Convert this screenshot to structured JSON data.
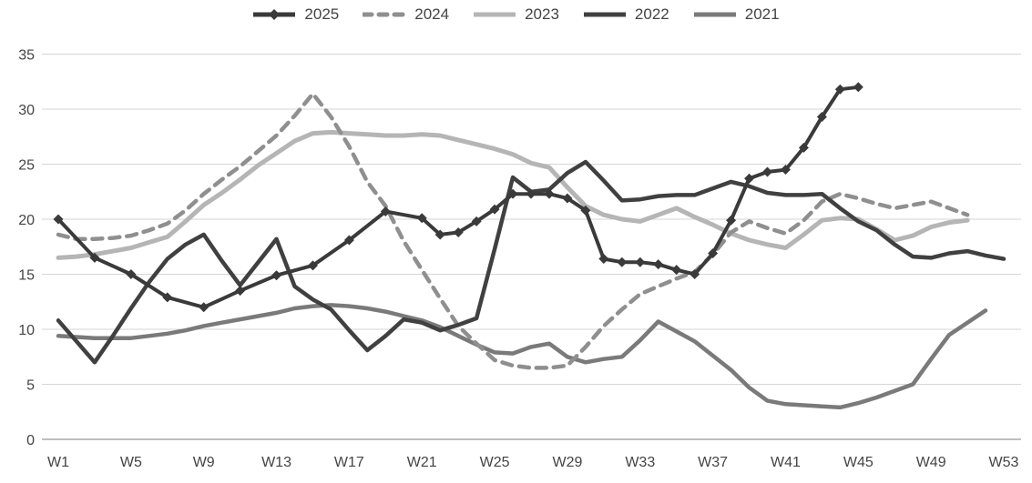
{
  "chart_data": {
    "type": "line",
    "title": "",
    "grid": true,
    "legend_position": "top",
    "x_axis": {
      "unit": "week",
      "min_week": 1,
      "max_week": 53,
      "tick_weeks": [
        1,
        5,
        9,
        13,
        17,
        21,
        25,
        29,
        33,
        37,
        41,
        45,
        49,
        53
      ],
      "tick_labels": [
        "W1",
        "W5",
        "W9",
        "W13",
        "W17",
        "W21",
        "W25",
        "W29",
        "W33",
        "W37",
        "W41",
        "W45",
        "W49",
        "W53"
      ]
    },
    "y_axis": {
      "min": 0,
      "max": 35,
      "ticks": [
        0,
        5,
        10,
        15,
        20,
        25,
        30,
        35
      ]
    },
    "colors": {
      "grid": "#d6d6d6",
      "baseline": "#a9a9a9",
      "tick_text": "#444444"
    },
    "series": [
      {
        "name": "2025",
        "color": "#3a3a3a",
        "width": 4,
        "dash": null,
        "marker": "diamond",
        "points": [
          [
            1,
            20
          ],
          [
            3,
            16.5
          ],
          [
            5,
            15
          ],
          [
            7,
            12.9
          ],
          [
            9,
            12
          ],
          [
            11,
            13.5
          ],
          [
            13,
            14.9
          ],
          [
            15,
            15.8
          ],
          [
            17,
            18.1
          ],
          [
            19,
            20.7
          ],
          [
            21,
            20.1
          ],
          [
            22,
            18.6
          ],
          [
            23,
            18.8
          ],
          [
            24,
            19.8
          ],
          [
            25,
            20.9
          ],
          [
            26,
            22.3
          ],
          [
            27,
            22.3
          ],
          [
            28,
            22.3
          ],
          [
            29,
            21.9
          ],
          [
            30,
            20.8
          ],
          [
            31,
            16.4
          ],
          [
            32,
            16.1
          ],
          [
            33,
            16.1
          ],
          [
            34,
            15.9
          ],
          [
            35,
            15.4
          ],
          [
            36,
            15
          ],
          [
            37,
            16.9
          ],
          [
            38,
            19.9
          ],
          [
            39,
            23.7
          ],
          [
            40,
            24.3
          ],
          [
            41,
            24.5
          ],
          [
            42,
            26.5
          ],
          [
            43,
            29.3
          ],
          [
            44,
            31.8
          ],
          [
            45,
            32
          ]
        ]
      },
      {
        "name": "2024",
        "color": "#8f8f8f",
        "width": 4.5,
        "dash": "11 8",
        "marker": null,
        "points": [
          [
            1,
            18.6
          ],
          [
            2,
            18.2
          ],
          [
            3,
            18.2
          ],
          [
            4,
            18.3
          ],
          [
            5,
            18.5
          ],
          [
            6,
            19
          ],
          [
            7,
            19.6
          ],
          [
            8,
            20.8
          ],
          [
            9,
            22.3
          ],
          [
            10,
            23.6
          ],
          [
            11,
            24.8
          ],
          [
            12,
            26.2
          ],
          [
            13,
            27.6
          ],
          [
            14,
            29.4
          ],
          [
            15,
            31.4
          ],
          [
            16,
            29.3
          ],
          [
            17,
            26.6
          ],
          [
            18,
            23.4
          ],
          [
            19,
            21.2
          ],
          [
            20,
            18
          ],
          [
            21,
            15.4
          ],
          [
            22,
            12.8
          ],
          [
            23,
            10.3
          ],
          [
            24,
            8.7
          ],
          [
            25,
            7.2
          ],
          [
            26,
            6.7
          ],
          [
            27,
            6.5
          ],
          [
            28,
            6.5
          ],
          [
            29,
            6.7
          ],
          [
            30,
            8.4
          ],
          [
            31,
            10.3
          ],
          [
            32,
            11.8
          ],
          [
            33,
            13.2
          ],
          [
            34,
            13.9
          ],
          [
            35,
            14.6
          ],
          [
            36,
            15.2
          ],
          [
            37,
            16.8
          ],
          [
            38,
            18.8
          ],
          [
            39,
            19.8
          ],
          [
            40,
            19.2
          ],
          [
            41,
            18.7
          ],
          [
            42,
            19.9
          ],
          [
            43,
            21.6
          ],
          [
            44,
            22.3
          ],
          [
            45,
            21.9
          ],
          [
            46,
            21.4
          ],
          [
            47,
            21
          ],
          [
            48,
            21.3
          ],
          [
            49,
            21.6
          ],
          [
            50,
            21
          ],
          [
            51,
            20.4
          ]
        ]
      },
      {
        "name": "2023",
        "color": "#b5b5b5",
        "width": 5,
        "dash": null,
        "marker": null,
        "points": [
          [
            1,
            16.5
          ],
          [
            2,
            16.6
          ],
          [
            3,
            16.8
          ],
          [
            4,
            17.1
          ],
          [
            5,
            17.4
          ],
          [
            6,
            17.9
          ],
          [
            7,
            18.4
          ],
          [
            8,
            19.8
          ],
          [
            9,
            21.3
          ],
          [
            10,
            22.4
          ],
          [
            11,
            23.6
          ],
          [
            12,
            24.9
          ],
          [
            13,
            26
          ],
          [
            14,
            27.1
          ],
          [
            15,
            27.8
          ],
          [
            16,
            27.9
          ],
          [
            17,
            27.8
          ],
          [
            18,
            27.7
          ],
          [
            19,
            27.6
          ],
          [
            20,
            27.6
          ],
          [
            21,
            27.7
          ],
          [
            22,
            27.6
          ],
          [
            23,
            27.2
          ],
          [
            24,
            26.8
          ],
          [
            25,
            26.4
          ],
          [
            26,
            25.9
          ],
          [
            27,
            25.1
          ],
          [
            28,
            24.7
          ],
          [
            29,
            22.9
          ],
          [
            30,
            21.2
          ],
          [
            31,
            20.4
          ],
          [
            32,
            20
          ],
          [
            33,
            19.8
          ],
          [
            34,
            20.4
          ],
          [
            35,
            21
          ],
          [
            36,
            20.2
          ],
          [
            37,
            19.5
          ],
          [
            38,
            18.7
          ],
          [
            39,
            18.1
          ],
          [
            40,
            17.7
          ],
          [
            41,
            17.4
          ],
          [
            42,
            18.6
          ],
          [
            43,
            19.9
          ],
          [
            44,
            20.1
          ],
          [
            45,
            20
          ],
          [
            46,
            19.1
          ],
          [
            47,
            18.1
          ],
          [
            48,
            18.5
          ],
          [
            49,
            19.3
          ],
          [
            50,
            19.7
          ],
          [
            51,
            19.9
          ]
        ]
      },
      {
        "name": "2022",
        "color": "#404040",
        "width": 4.5,
        "dash": null,
        "marker": null,
        "points": [
          [
            1,
            10.8
          ],
          [
            2,
            8.9
          ],
          [
            3,
            7
          ],
          [
            4,
            9.4
          ],
          [
            5,
            11.9
          ],
          [
            6,
            14.3
          ],
          [
            7,
            16.4
          ],
          [
            8,
            17.7
          ],
          [
            9,
            18.6
          ],
          [
            10,
            16.2
          ],
          [
            11,
            14
          ],
          [
            12,
            16.1
          ],
          [
            13,
            18.2
          ],
          [
            14,
            13.9
          ],
          [
            15,
            12.7
          ],
          [
            16,
            11.8
          ],
          [
            17,
            9.9
          ],
          [
            18,
            8.1
          ],
          [
            19,
            9.4
          ],
          [
            20,
            10.9
          ],
          [
            21,
            10.6
          ],
          [
            22,
            9.9
          ],
          [
            23,
            10.4
          ],
          [
            24,
            11
          ],
          [
            25,
            17.3
          ],
          [
            26,
            23.8
          ],
          [
            27,
            22.5
          ],
          [
            28,
            22.7
          ],
          [
            29,
            24.2
          ],
          [
            30,
            25.2
          ],
          [
            31,
            23.5
          ],
          [
            32,
            21.7
          ],
          [
            33,
            21.8
          ],
          [
            34,
            22.1
          ],
          [
            35,
            22.2
          ],
          [
            36,
            22.2
          ],
          [
            37,
            22.8
          ],
          [
            38,
            23.4
          ],
          [
            39,
            23
          ],
          [
            40,
            22.4
          ],
          [
            41,
            22.2
          ],
          [
            42,
            22.2
          ],
          [
            43,
            22.3
          ],
          [
            44,
            21
          ],
          [
            45,
            19.8
          ],
          [
            46,
            19
          ],
          [
            47,
            17.7
          ],
          [
            48,
            16.6
          ],
          [
            49,
            16.5
          ],
          [
            50,
            16.9
          ],
          [
            51,
            17.1
          ],
          [
            52,
            16.7
          ],
          [
            53,
            16.4
          ]
        ]
      },
      {
        "name": "2021",
        "color": "#7a7a7a",
        "width": 4.5,
        "dash": null,
        "marker": null,
        "points": [
          [
            1,
            9.4
          ],
          [
            2,
            9.3
          ],
          [
            3,
            9.2
          ],
          [
            4,
            9.2
          ],
          [
            5,
            9.2
          ],
          [
            6,
            9.4
          ],
          [
            7,
            9.6
          ],
          [
            8,
            9.9
          ],
          [
            9,
            10.3
          ],
          [
            10,
            10.6
          ],
          [
            11,
            10.9
          ],
          [
            12,
            11.2
          ],
          [
            13,
            11.5
          ],
          [
            14,
            11.9
          ],
          [
            15,
            12.1
          ],
          [
            16,
            12.2
          ],
          [
            17,
            12.1
          ],
          [
            18,
            11.9
          ],
          [
            19,
            11.6
          ],
          [
            20,
            11.2
          ],
          [
            21,
            10.8
          ],
          [
            22,
            10.2
          ],
          [
            23,
            9.4
          ],
          [
            24,
            8.6
          ],
          [
            25,
            7.9
          ],
          [
            26,
            7.8
          ],
          [
            27,
            8.4
          ],
          [
            28,
            8.7
          ],
          [
            29,
            7.5
          ],
          [
            30,
            7
          ],
          [
            31,
            7.3
          ],
          [
            32,
            7.5
          ],
          [
            33,
            9
          ],
          [
            34,
            10.7
          ],
          [
            35,
            9.8
          ],
          [
            36,
            8.9
          ],
          [
            37,
            7.6
          ],
          [
            38,
            6.3
          ],
          [
            39,
            4.7
          ],
          [
            40,
            3.5
          ],
          [
            41,
            3.2
          ],
          [
            42,
            3.1
          ],
          [
            43,
            3
          ],
          [
            44,
            2.9
          ],
          [
            45,
            3.3
          ],
          [
            46,
            3.8
          ],
          [
            47,
            4.4
          ],
          [
            48,
            5
          ],
          [
            49,
            7.3
          ],
          [
            50,
            9.5
          ],
          [
            51,
            10.6
          ],
          [
            52,
            11.7
          ]
        ]
      }
    ]
  }
}
